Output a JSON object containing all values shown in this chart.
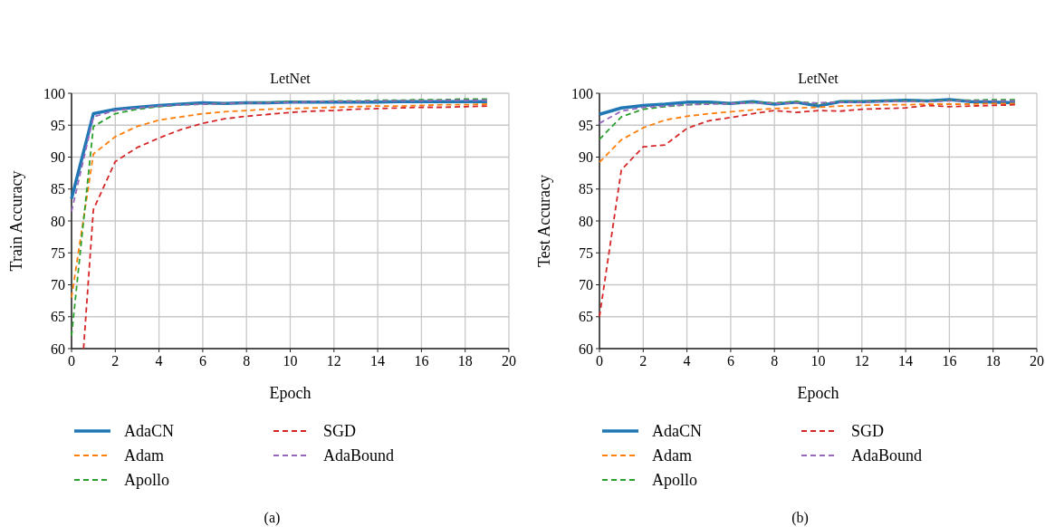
{
  "chart_data": [
    {
      "type": "line",
      "title": "LetNet",
      "xlabel": "Epoch",
      "ylabel": "Train Accuracy",
      "x": [
        0,
        1,
        2,
        3,
        4,
        5,
        6,
        7,
        8,
        9,
        10,
        11,
        12,
        13,
        14,
        15,
        16,
        17,
        18,
        19
      ],
      "xlim": [
        0,
        20
      ],
      "xticks": [
        0,
        2,
        4,
        6,
        8,
        10,
        12,
        14,
        16,
        18,
        20
      ],
      "ylim": [
        60,
        100
      ],
      "yticks": [
        60,
        65,
        70,
        75,
        80,
        85,
        90,
        95,
        100
      ],
      "grid": true,
      "legend": "bottom",
      "annotations": [
        "(a)"
      ],
      "series": [
        {
          "name": "AdaCN",
          "color": "#1f77b4",
          "line_style": "solid",
          "values": [
            83.5,
            96.8,
            97.5,
            97.8,
            98.1,
            98.3,
            98.5,
            98.4,
            98.5,
            98.5,
            98.6,
            98.6,
            98.6,
            98.6,
            98.6,
            98.7,
            98.7,
            98.7,
            98.7,
            98.7
          ]
        },
        {
          "name": "Adam",
          "color": "#ff7f0e",
          "line_style": "dashed",
          "values": [
            68,
            90.5,
            93.2,
            94.8,
            95.8,
            96.3,
            96.8,
            97.1,
            97.3,
            97.5,
            97.6,
            97.7,
            97.8,
            97.9,
            98,
            98,
            98.1,
            98.2,
            98.2,
            98.3
          ]
        },
        {
          "name": "Apollo",
          "color": "#2ca02c",
          "line_style": "dashed",
          "values": [
            62,
            94.8,
            96.8,
            97.5,
            97.9,
            98.2,
            98.3,
            98.4,
            98.5,
            98.6,
            98.7,
            98.7,
            98.8,
            98.8,
            98.9,
            98.9,
            99,
            99,
            99.1,
            99.1
          ]
        },
        {
          "name": "SGD",
          "color": "#d62728",
          "line_style": "dashed",
          "x": [
            0.55,
            1,
            2,
            3,
            4,
            5,
            6,
            7,
            8,
            9,
            10,
            11,
            12,
            13,
            14,
            15,
            16,
            17,
            18,
            19
          ],
          "values": [
            60,
            81.8,
            89.3,
            91.5,
            93,
            94.3,
            95.3,
            96,
            96.4,
            96.7,
            97,
            97.2,
            97.3,
            97.5,
            97.6,
            97.7,
            97.8,
            97.8,
            97.9,
            98
          ]
        },
        {
          "name": "AdaBound",
          "color": "#9467bd",
          "line_style": "dashed",
          "values": [
            81.5,
            96.3,
            97.3,
            97.7,
            98,
            98.2,
            98.3,
            98.4,
            98.5,
            98.5,
            98.6,
            98.7,
            98.7,
            98.7,
            98.8,
            98.8,
            98.8,
            98.9,
            98.9,
            98.9
          ]
        }
      ]
    },
    {
      "type": "line",
      "title": "LetNet",
      "xlabel": "Epoch",
      "ylabel": "Test Accuracy",
      "x": [
        0,
        1,
        2,
        3,
        4,
        5,
        6,
        7,
        8,
        9,
        10,
        11,
        12,
        13,
        14,
        15,
        16,
        17,
        18,
        19
      ],
      "xlim": [
        0,
        20
      ],
      "xticks": [
        0,
        2,
        4,
        6,
        8,
        10,
        12,
        14,
        16,
        18,
        20
      ],
      "ylim": [
        60,
        100
      ],
      "yticks": [
        60,
        65,
        70,
        75,
        80,
        85,
        90,
        95,
        100
      ],
      "grid": true,
      "legend": "bottom",
      "annotations": [
        "(b)"
      ],
      "series": [
        {
          "name": "AdaCN",
          "color": "#1f77b4",
          "line_style": "solid",
          "values": [
            96.7,
            97.7,
            98.1,
            98.3,
            98.6,
            98.6,
            98.4,
            98.7,
            98.3,
            98.6,
            98,
            98.7,
            98.7,
            98.8,
            98.9,
            98.8,
            99,
            98.7,
            98.6,
            98.5
          ]
        },
        {
          "name": "Adam",
          "color": "#ff7f0e",
          "line_style": "dashed",
          "values": [
            89.2,
            92.7,
            94.6,
            95.8,
            96.4,
            96.8,
            97.1,
            97.4,
            97.6,
            97.7,
            97.8,
            98,
            98.1,
            98.2,
            98.2,
            98.3,
            98.3,
            98.3,
            98.4,
            98.4
          ]
        },
        {
          "name": "Apollo",
          "color": "#2ca02c",
          "line_style": "dashed",
          "values": [
            92.8,
            96.3,
            97.5,
            97.9,
            98.2,
            98.4,
            98.4,
            98.6,
            98.5,
            98.7,
            98.4,
            98.7,
            98.7,
            98.8,
            98.8,
            98.8,
            98.9,
            98.9,
            99,
            99
          ]
        },
        {
          "name": "SGD",
          "color": "#d62728",
          "line_style": "dashed",
          "values": [
            65,
            88,
            91.6,
            91.9,
            94.5,
            95.7,
            96.2,
            96.8,
            97.3,
            97,
            97.3,
            97.2,
            97.5,
            97.6,
            97.7,
            98.1,
            97.9,
            98,
            98.1,
            98.2
          ]
        },
        {
          "name": "AdaBound",
          "color": "#9467bd",
          "line_style": "dashed",
          "values": [
            95.3,
            97.2,
            97.8,
            98,
            98.2,
            98.3,
            98.4,
            98.5,
            98.4,
            98.5,
            98.5,
            98.6,
            98.6,
            98.7,
            98.7,
            98.7,
            98.8,
            98.8,
            98.8,
            98.8
          ]
        }
      ]
    }
  ]
}
